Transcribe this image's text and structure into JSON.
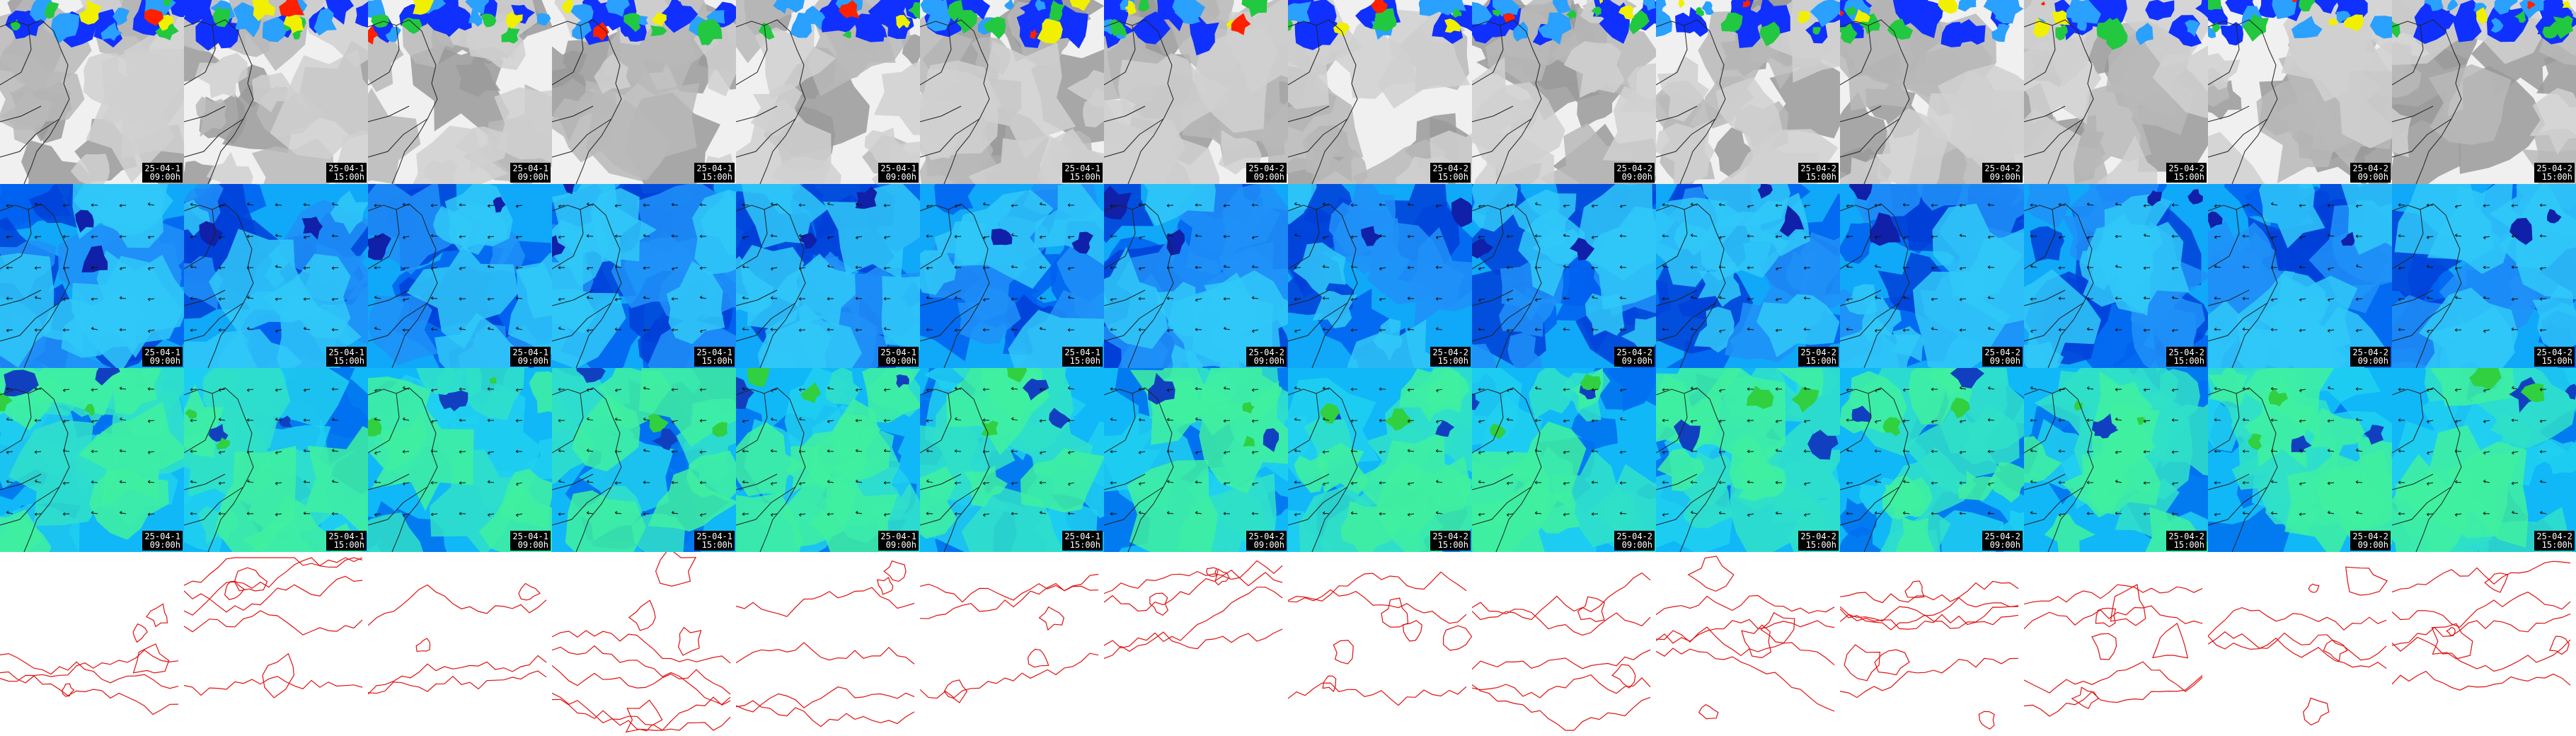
{
  "grid": {
    "columns": 14,
    "rows": 4
  },
  "rows": [
    {
      "id": "cloud-precip",
      "layer": "cloud-cover-precipitation",
      "base_color": "#f0f0f0",
      "shade_colors": [
        "#9a9a9a",
        "#b8b8b8",
        "#d0d0d0"
      ],
      "overlay_colors": [
        "#1030ff",
        "#2aa0ff",
        "#22c840",
        "#f0f000",
        "#ff2000"
      ],
      "has_wind_arrows": false,
      "has_stamp": true
    },
    {
      "id": "field-a",
      "layer": "wind-field-a",
      "base_color": "#10a8f8",
      "shade_colors": [
        "#0060f0",
        "#0040d8",
        "#2090f8",
        "#30c8f8"
      ],
      "overlay_colors": [
        "#1020a8"
      ],
      "has_wind_arrows": true,
      "has_stamp": true
    },
    {
      "id": "field-b",
      "layer": "wind-field-b",
      "base_color": "#10b8f8",
      "shade_colors": [
        "#0070f0",
        "#20d0f0",
        "#30e0c8",
        "#40f0a0"
      ],
      "overlay_colors": [
        "#1040c0",
        "#30d040"
      ],
      "has_wind_arrows": true,
      "has_stamp": true
    },
    {
      "id": "contours",
      "layer": "red-contour-lines",
      "base_color": "#ffffff",
      "shade_colors": [],
      "overlay_colors": [
        "#e01010"
      ],
      "has_wind_arrows": false,
      "has_stamp": false
    }
  ],
  "columns": [
    {
      "date_label": "25-04-1",
      "time_label": "09:00h"
    },
    {
      "date_label": "25-04-1",
      "time_label": "15:00h"
    },
    {
      "date_label": "25-04-1",
      "time_label": "09:00h"
    },
    {
      "date_label": "25-04-1",
      "time_label": "15:00h"
    },
    {
      "date_label": "25-04-1",
      "time_label": "09:00h"
    },
    {
      "date_label": "25-04-1",
      "time_label": "15:00h"
    },
    {
      "date_label": "25-04-2",
      "time_label": "09:00h"
    },
    {
      "date_label": "25-04-2",
      "time_label": "15:00h"
    },
    {
      "date_label": "25-04-2",
      "time_label": "09:00h"
    },
    {
      "date_label": "25-04-2",
      "time_label": "15:00h"
    },
    {
      "date_label": "25-04-2",
      "time_label": "09:00h"
    },
    {
      "date_label": "25-04-2",
      "time_label": "15:00h"
    },
    {
      "date_label": "25-04-2",
      "time_label": "09:00h"
    },
    {
      "date_label": "25-04-2",
      "time_label": "15:00h"
    }
  ],
  "map": {
    "coastline_color": "#222222",
    "arrow_color": "#101010"
  }
}
